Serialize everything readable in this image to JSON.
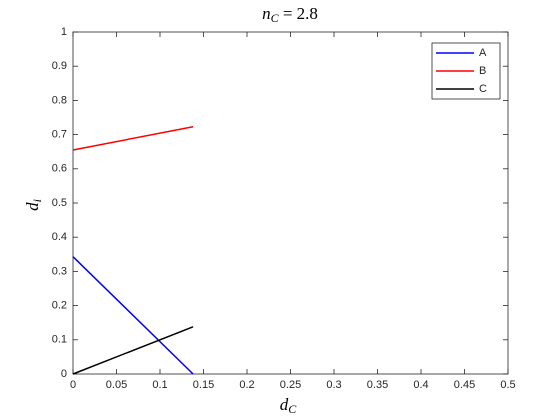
{
  "chart_data": {
    "type": "line",
    "title": {
      "base": "n",
      "sub": "C",
      "rest": " = 2.8"
    },
    "xlabel": {
      "base": "d",
      "sub": "C"
    },
    "ylabel": {
      "base": "d",
      "sub": "i"
    },
    "x": [
      0,
      0.138
    ],
    "series": [
      {
        "name": "A",
        "color": "#0000ff",
        "values": [
          0.343,
          0
        ]
      },
      {
        "name": "B",
        "color": "#ff0000",
        "values": [
          0.655,
          0.723
        ]
      },
      {
        "name": "C",
        "color": "#000000",
        "values": [
          0,
          0.138
        ]
      }
    ],
    "xlim": [
      0,
      0.5
    ],
    "xticks": [
      0,
      0.05,
      0.1,
      0.15,
      0.2,
      0.25,
      0.3,
      0.35,
      0.4,
      0.45,
      0.5
    ],
    "ylim": [
      0,
      1
    ],
    "yticks": [
      0,
      0.1,
      0.2,
      0.3,
      0.4,
      0.5,
      0.6,
      0.7,
      0.8,
      0.9,
      1
    ],
    "grid": false,
    "legend": "northeast"
  }
}
